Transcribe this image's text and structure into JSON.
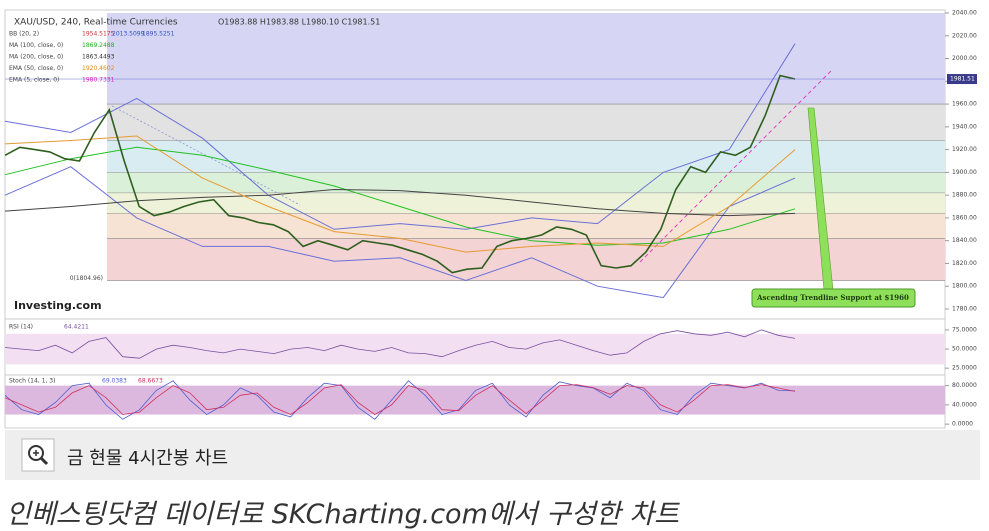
{
  "chart_data": {
    "type": "line",
    "title": "XAU/USD, 240, Real-time Currencies",
    "ohlc": "O1983.88 H1983.88 L1980.10 C1981.51",
    "price_tag": "1981.51",
    "brand": "Investing.com",
    "price_color": "#2f5f1f",
    "values": [
      1915,
      1922,
      1920,
      1918,
      1912,
      1910,
      1935,
      1955,
      1910,
      1870,
      1862,
      1865,
      1870,
      1874,
      1876,
      1862,
      1860,
      1856,
      1854,
      1848,
      1835,
      1840,
      1836,
      1832,
      1840,
      1838,
      1836,
      1832,
      1828,
      1822,
      1812,
      1815,
      1816,
      1835,
      1840,
      1842,
      1845,
      1852,
      1850,
      1845,
      1818,
      1816,
      1818,
      1830,
      1850,
      1885,
      1905,
      1900,
      1918,
      1915,
      1922,
      1950,
      1985,
      1982
    ],
    "ylim": [
      1780,
      2040
    ],
    "yticks": [
      {
        "value": 2040,
        "label": "2040.00"
      },
      {
        "value": 2020,
        "label": "2020.00"
      },
      {
        "value": 2000,
        "label": "2000.00"
      },
      {
        "value": 1980,
        "label": "1980.00"
      },
      {
        "value": 1960,
        "label": "1960.00"
      },
      {
        "value": 1940,
        "label": "1940.00"
      },
      {
        "value": 1920,
        "label": "1920.00"
      },
      {
        "value": 1900,
        "label": "1900.00"
      },
      {
        "value": 1880,
        "label": "1880.00"
      },
      {
        "value": 1860,
        "label": "1860.00"
      },
      {
        "value": 1840,
        "label": "1840.00"
      },
      {
        "value": 1820,
        "label": "1820.00"
      },
      {
        "value": 1800,
        "label": "1800.00"
      },
      {
        "value": 1780,
        "label": "1780.00"
      }
    ],
    "fib_levels": [
      1804.96,
      1842,
      1864,
      1882,
      1900,
      1928,
      1960,
      2040
    ],
    "fib_colors": [
      "#f3d3d3",
      "#f6e3d3",
      "#eef2d8",
      "#daf0d8",
      "#d8ecf2",
      "#e2e2e2",
      "#d6d6f4"
    ],
    "fib_label": "0(1804.96)",
    "indicators": [
      {
        "name": "BB (20, 2)",
        "readings": [
          1954.5175,
          2013.5099,
          1895.5251
        ],
        "reading_colors": [
          "#d03030",
          "#3050c0",
          "#3050c0"
        ]
      },
      {
        "name": "MA (100, close, 0)",
        "readings": [
          1869.2488
        ],
        "reading_colors": [
          "#20b020"
        ]
      },
      {
        "name": "MA (200, close, 0)",
        "readings": [
          1863.4493
        ],
        "reading_colors": [
          "#333333"
        ]
      },
      {
        "name": "EMA (50, close, 0)",
        "readings": [
          1920.4602
        ],
        "reading_colors": [
          "#e08a20"
        ]
      },
      {
        "name": "EMA (5, close, 0)",
        "readings": [
          1980.7331
        ],
        "reading_colors": [
          "#d020c0"
        ]
      }
    ],
    "lines": [
      {
        "color": "#6a70d8",
        "values": [
          1945,
          1935,
          1965,
          1930,
          1880,
          1850,
          1855,
          1850,
          1860,
          1855,
          1900,
          1920,
          2013
        ]
      },
      {
        "color": "#6a70d8",
        "values": [
          1880,
          1905,
          1860,
          1835,
          1835,
          1822,
          1825,
          1805,
          1825,
          1800,
          1790,
          1870,
          1895
        ]
      },
      {
        "color": "#22c022",
        "values": [
          1898,
          1912,
          1922,
          1915,
          1902,
          1888,
          1870,
          1852,
          1840,
          1836,
          1838,
          1850,
          1868
        ]
      },
      {
        "color": "#444444",
        "values": [
          1866,
          1870,
          1875,
          1878,
          1880,
          1885,
          1884,
          1880,
          1874,
          1868,
          1864,
          1862,
          1864
        ]
      },
      {
        "color": "#e89a30",
        "values": [
          1925,
          1928,
          1932,
          1895,
          1870,
          1848,
          1842,
          1830,
          1835,
          1838,
          1835,
          1870,
          1920
        ]
      }
    ],
    "annotation": "Ascending Trendline Support at $1960",
    "rsi": {
      "name": "RSI (14)",
      "reading": 64.4211,
      "ylim": [
        20,
        88
      ],
      "band": [
        30,
        70
      ],
      "yticks": [
        {
          "value": 75,
          "label": "75.0000"
        },
        {
          "value": 50,
          "label": "50.0000"
        },
        {
          "value": 25,
          "label": "25.0000"
        }
      ],
      "values": [
        52,
        50,
        48,
        55,
        45,
        60,
        65,
        40,
        38,
        50,
        55,
        52,
        48,
        45,
        50,
        47,
        44,
        50,
        52,
        48,
        55,
        50,
        47,
        52,
        45,
        44,
        40,
        48,
        55,
        60,
        52,
        50,
        58,
        62,
        55,
        48,
        42,
        45,
        60,
        70,
        74,
        70,
        68,
        72,
        66,
        75,
        68,
        64
      ]
    },
    "stoch": {
      "name": "Stoch (14, 1, 3)",
      "readings": [
        69.0383,
        68.6673
      ],
      "ylim": [
        -8,
        100
      ],
      "band": [
        20,
        80
      ],
      "yticks": [
        {
          "value": 80,
          "label": "80.0000"
        },
        {
          "value": 40,
          "label": "40.0000"
        },
        {
          "value": 0,
          "label": "0.0000"
        }
      ],
      "k": [
        60,
        30,
        20,
        45,
        80,
        85,
        40,
        10,
        30,
        70,
        90,
        50,
        20,
        40,
        75,
        60,
        25,
        15,
        55,
        85,
        80,
        35,
        10,
        50,
        90,
        60,
        20,
        30,
        70,
        85,
        40,
        15,
        60,
        88,
        80,
        75,
        55,
        85,
        70,
        30,
        20,
        60,
        85,
        80,
        75,
        85,
        70,
        69
      ],
      "d": [
        55,
        40,
        25,
        35,
        65,
        80,
        55,
        20,
        25,
        55,
        80,
        65,
        30,
        35,
        60,
        65,
        35,
        20,
        45,
        75,
        82,
        45,
        20,
        40,
        80,
        70,
        30,
        28,
        60,
        80,
        50,
        22,
        50,
        80,
        82,
        76,
        62,
        80,
        75,
        40,
        25,
        50,
        80,
        82,
        76,
        82,
        75,
        68
      ]
    }
  },
  "caption": "금 현물 4시간봉 차트",
  "credit": "인베스팅닷컴 데이터로 SKCharting.com에서 구성한 차트"
}
